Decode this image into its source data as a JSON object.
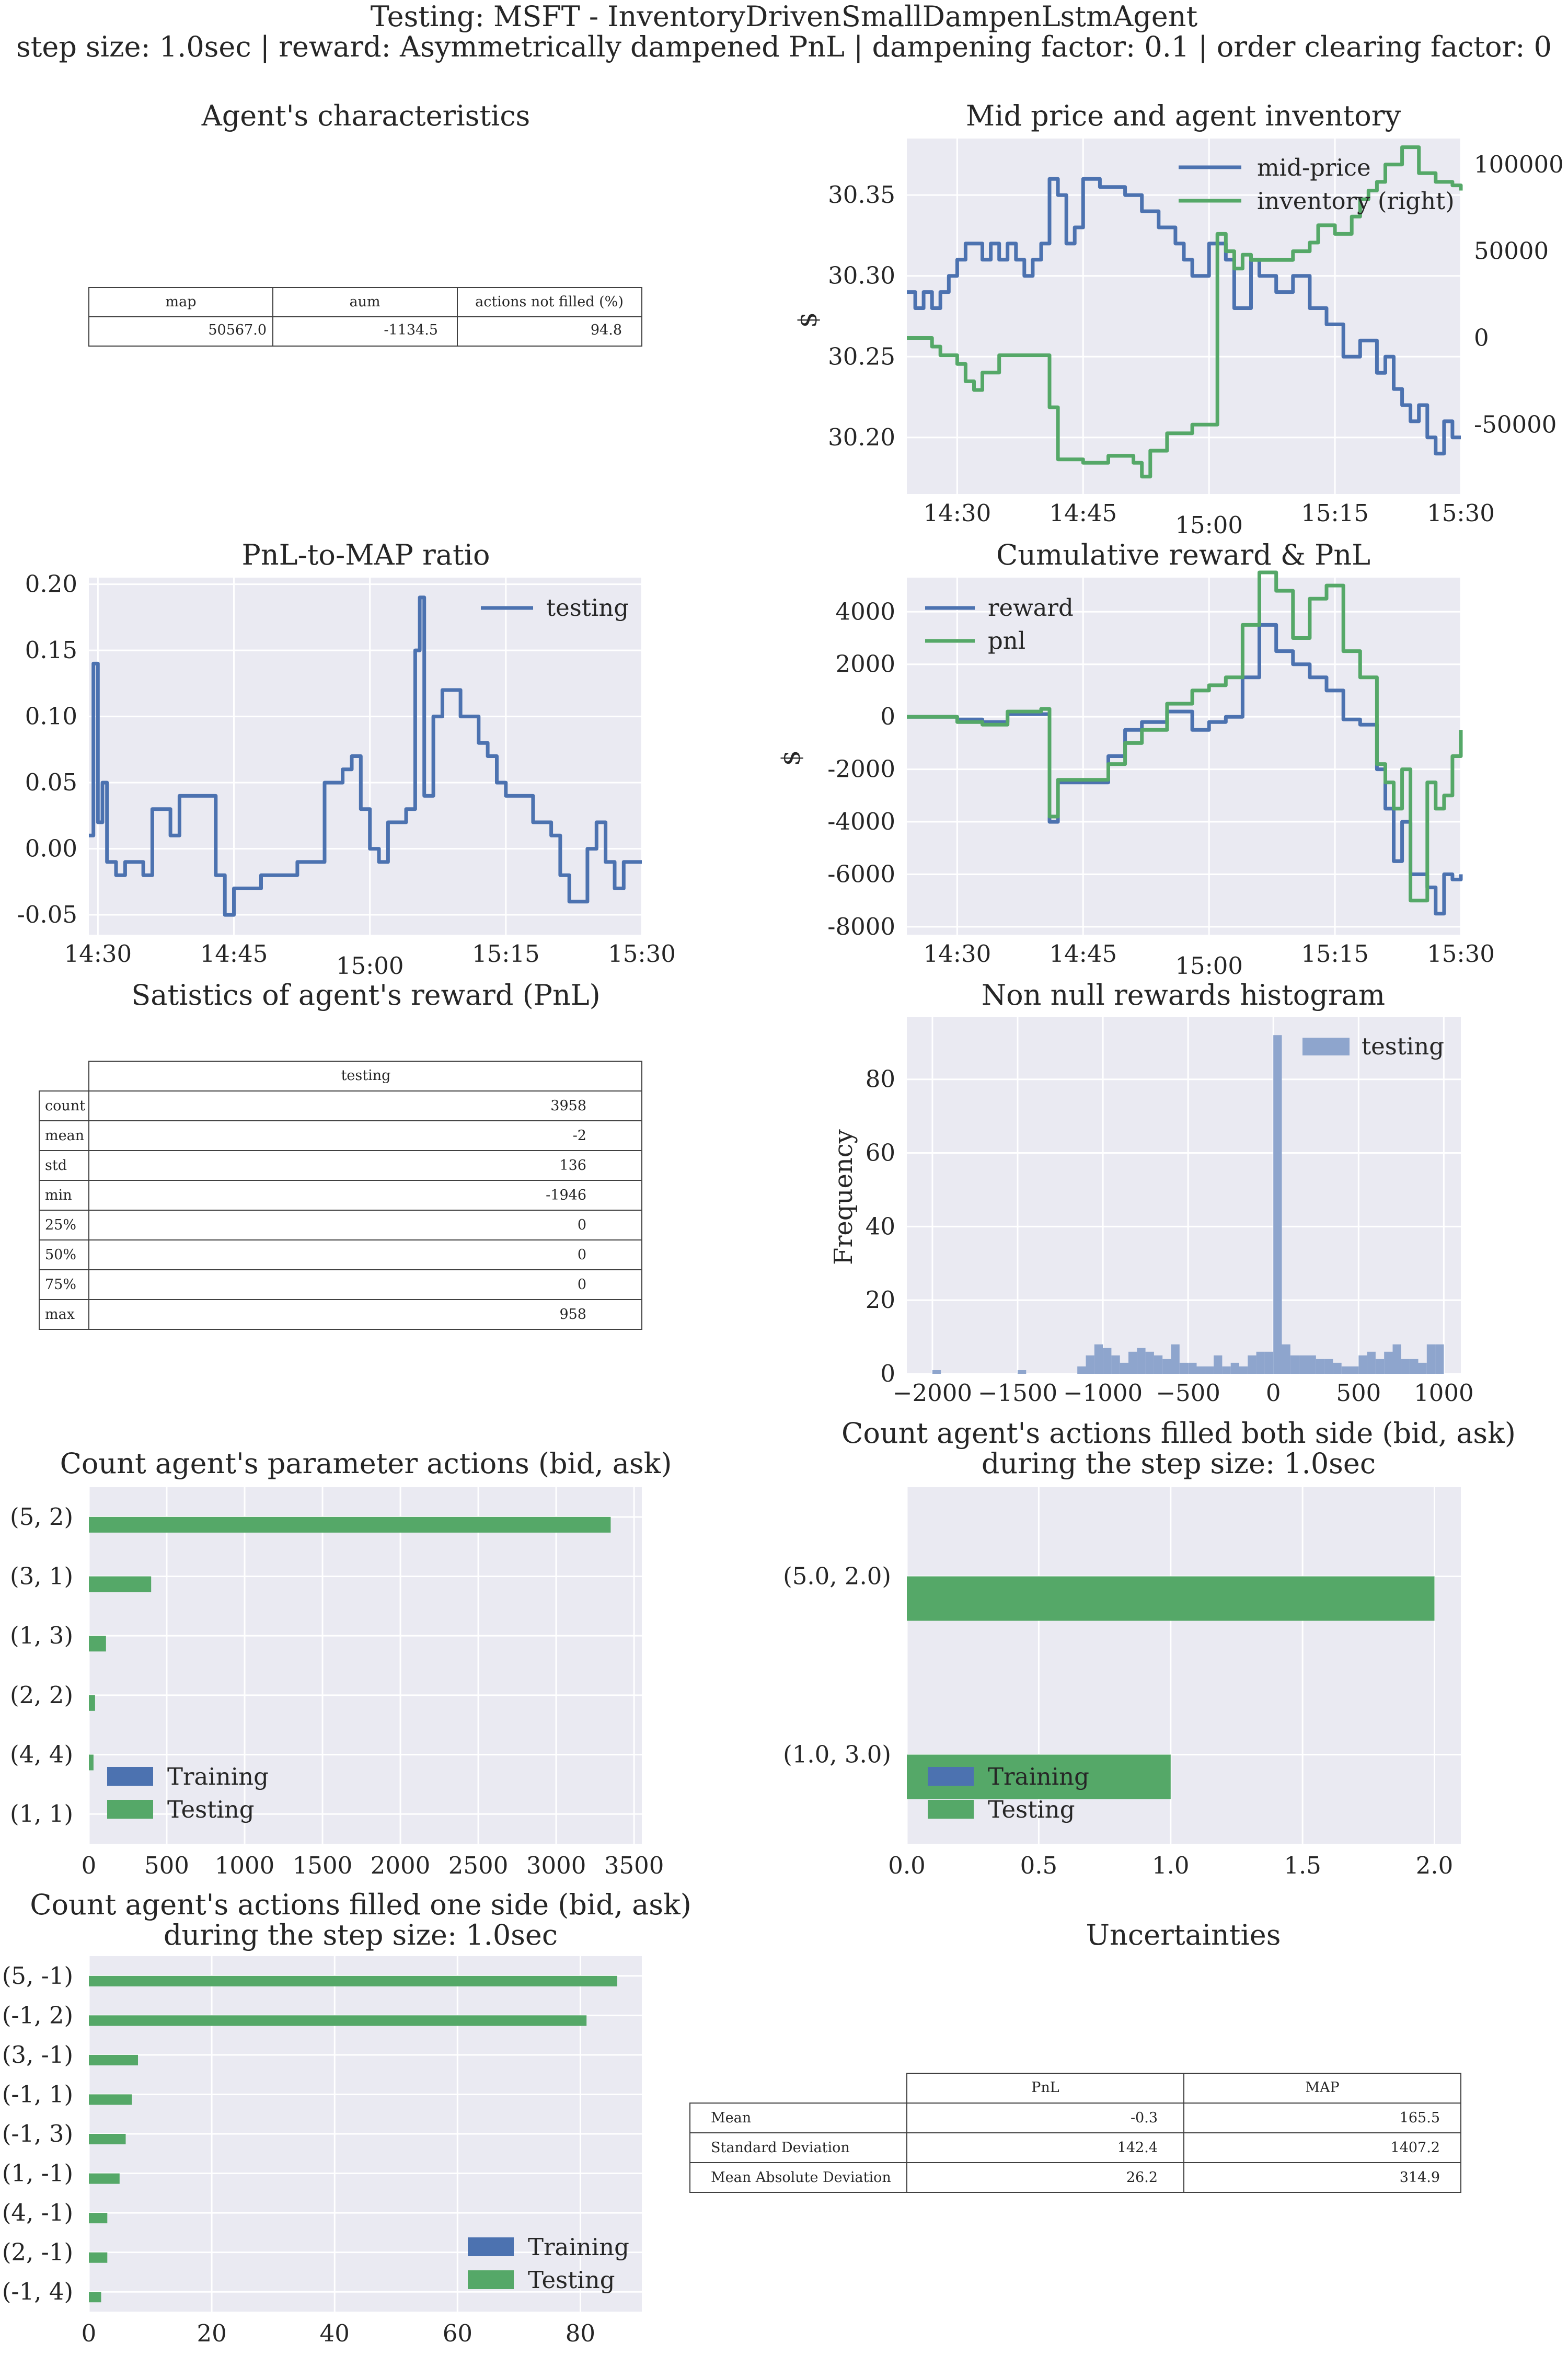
{
  "suptitle": {
    "line1": "Testing: MSFT - InventoryDrivenSmallDampenLstmAgent",
    "line2": "step size: 1.0sec | reward: Asymmetrically dampened PnL | dampening factor: 0.1  | order clearing factor: 0"
  },
  "colors": {
    "blue": "#4c72b0",
    "green": "#55a868",
    "plot_bg": "#eaeaf2",
    "hist": "#8ea5cd"
  },
  "characteristics": {
    "title": "Agent's characteristics",
    "headers": [
      "map",
      "aum",
      "actions not filled (%)"
    ],
    "values": [
      "50567.0",
      "-1134.5",
      "94.8"
    ]
  },
  "chart_data": [
    {
      "id": "mid_price_inventory",
      "type": "line",
      "title": "Mid price and agent inventory",
      "xlabel": "",
      "ylabel": "$",
      "x_ticks": [
        "14:30",
        "14:45",
        "15:00",
        "15:15",
        "15:30"
      ],
      "x_range": [
        "14:24",
        "15:30"
      ],
      "ylim": [
        30.165,
        30.385
      ],
      "y_ticks": [
        "30.20",
        "30.25",
        "30.30",
        "30.35"
      ],
      "y2lim": [
        -90000,
        115000
      ],
      "y2_ticks": [
        "-50000",
        "0",
        "50000",
        "100000"
      ],
      "legend": "upper right",
      "grid": true,
      "series": [
        {
          "name": "mid-price",
          "axis": "left",
          "x": [
            "14:24",
            "14:25",
            "14:26",
            "14:27",
            "14:28",
            "14:29",
            "14:30",
            "14:31",
            "14:32",
            "14:33",
            "14:34",
            "14:35",
            "14:36",
            "14:37",
            "14:38",
            "14:39",
            "14:40",
            "14:41",
            "14:42",
            "14:43",
            "14:44",
            "14:45",
            "14:47",
            "14:50",
            "14:52",
            "14:54",
            "14:56",
            "14:57",
            "14:58",
            "15:00",
            "15:02",
            "15:03",
            "15:05",
            "15:06",
            "15:08",
            "15:10",
            "15:12",
            "15:14",
            "15:16",
            "15:18",
            "15:20",
            "15:21",
            "15:22",
            "15:23",
            "15:24",
            "15:25",
            "15:26",
            "15:27",
            "15:28",
            "15:29",
            "15:30"
          ],
          "values": [
            30.29,
            30.28,
            30.29,
            30.28,
            30.29,
            30.3,
            30.31,
            30.32,
            30.32,
            30.31,
            30.32,
            30.31,
            30.32,
            30.31,
            30.3,
            30.31,
            30.32,
            30.36,
            30.35,
            30.32,
            30.33,
            30.36,
            30.355,
            30.35,
            30.34,
            30.33,
            30.32,
            30.31,
            30.3,
            30.32,
            30.31,
            30.28,
            30.31,
            30.3,
            30.29,
            30.3,
            30.28,
            30.27,
            30.25,
            30.26,
            30.24,
            30.25,
            30.23,
            30.22,
            30.21,
            30.22,
            30.2,
            30.19,
            30.21,
            30.2,
            30.2
          ]
        },
        {
          "name": "inventory (right)",
          "axis": "right",
          "x": [
            "14:24",
            "14:25",
            "14:27",
            "14:28",
            "14:30",
            "14:31",
            "14:32",
            "14:33",
            "14:35",
            "14:37",
            "14:40",
            "14:41",
            "14:42",
            "14:45",
            "14:48",
            "14:51",
            "14:52",
            "14:53",
            "14:55",
            "14:58",
            "15:01",
            "15:02",
            "15:03",
            "15:04",
            "15:05",
            "15:08",
            "15:10",
            "15:12",
            "15:13",
            "15:15",
            "15:17",
            "15:18",
            "15:19",
            "15:20",
            "15:21",
            "15:23",
            "15:25",
            "15:27",
            "15:29",
            "15:30"
          ],
          "values": [
            0,
            0,
            -5000,
            -10000,
            -15000,
            -25000,
            -30000,
            -20000,
            -10000,
            -10000,
            -10000,
            -40000,
            -70000,
            -72000,
            -68000,
            -72000,
            -80000,
            -65000,
            -55000,
            -50000,
            60000,
            50000,
            40000,
            48000,
            45000,
            45000,
            50000,
            55000,
            65000,
            60000,
            70000,
            80000,
            85000,
            90000,
            100000,
            110000,
            95000,
            90000,
            88000,
            85000
          ]
        }
      ]
    },
    {
      "id": "pnl_to_map",
      "type": "line",
      "title": "PnL-to-MAP ratio",
      "xlabel": "",
      "ylabel": "",
      "x_ticks": [
        "14:30",
        "14:45",
        "15:00",
        "15:15",
        "15:30"
      ],
      "x_range": [
        "14:29",
        "15:30"
      ],
      "ylim": [
        -0.065,
        0.205
      ],
      "y_ticks": [
        "-0.05",
        "0.00",
        "0.05",
        "0.10",
        "0.15",
        "0.20"
      ],
      "legend": "upper right",
      "grid": true,
      "series": [
        {
          "name": "testing",
          "x": [
            "14:29",
            "14:29.5",
            "14:30",
            "14:30.5",
            "14:31",
            "14:32",
            "14:33",
            "14:35",
            "14:36",
            "14:38",
            "14:39",
            "14:40",
            "14:42",
            "14:43",
            "14:44",
            "14:45",
            "14:46",
            "14:48",
            "14:49",
            "14:52",
            "14:55",
            "14:57",
            "14:58",
            "14:59",
            "15:00",
            "15:01",
            "15:02",
            "15:04",
            "15:05",
            "15:05.5",
            "15:06",
            "15:07",
            "15:08",
            "15:10",
            "15:12",
            "15:13",
            "15:14",
            "15:15",
            "15:18",
            "15:20",
            "15:21",
            "15:22",
            "15:24",
            "15:25",
            "15:26",
            "15:27",
            "15:28",
            "15:29",
            "15:30"
          ],
          "values": [
            0.01,
            0.14,
            0.02,
            0.05,
            -0.01,
            -0.02,
            -0.01,
            -0.02,
            0.03,
            0.01,
            0.04,
            0.04,
            0.04,
            -0.02,
            -0.05,
            -0.03,
            -0.03,
            -0.02,
            -0.02,
            -0.01,
            0.05,
            0.06,
            0.07,
            0.03,
            0.0,
            -0.01,
            0.02,
            0.03,
            0.15,
            0.19,
            0.04,
            0.1,
            0.12,
            0.1,
            0.08,
            0.07,
            0.05,
            0.04,
            0.02,
            0.01,
            -0.02,
            -0.04,
            0.0,
            0.02,
            -0.01,
            -0.03,
            -0.01,
            -0.01,
            -0.01
          ]
        }
      ]
    },
    {
      "id": "cumulative_reward_pnl",
      "type": "line",
      "title": "Cumulative reward & PnL",
      "xlabel": "",
      "ylabel": "$",
      "x_ticks": [
        "14:30",
        "14:45",
        "15:00",
        "15:15",
        "15:30"
      ],
      "x_range": [
        "14:24",
        "15:30"
      ],
      "ylim": [
        -8300,
        5300
      ],
      "y_ticks": [
        "-8000",
        "-6000",
        "-4000",
        "-2000",
        "0",
        "2000",
        "4000"
      ],
      "legend": "upper left",
      "grid": true,
      "series": [
        {
          "name": "reward",
          "x": [
            "14:24",
            "14:27",
            "14:30",
            "14:33",
            "14:36",
            "14:40",
            "14:41",
            "14:42",
            "14:45",
            "14:48",
            "14:50",
            "14:52",
            "14:55",
            "14:58",
            "15:00",
            "15:02",
            "15:04",
            "15:06",
            "15:08",
            "15:10",
            "15:12",
            "15:14",
            "15:16",
            "15:18",
            "15:20",
            "15:21",
            "15:22",
            "15:23",
            "15:24",
            "15:26",
            "15:27",
            "15:28",
            "15:29",
            "15:30"
          ],
          "values": [
            0,
            0,
            -100,
            -200,
            100,
            100,
            -4000,
            -2500,
            -2500,
            -1500,
            -500,
            -200,
            200,
            -500,
            -200,
            0,
            1500,
            3500,
            2500,
            2000,
            1500,
            1000,
            -100,
            -300,
            -2000,
            -3500,
            -5500,
            -4000,
            -6000,
            -6500,
            -7500,
            -6000,
            -6200,
            -6000
          ]
        },
        {
          "name": "pnl",
          "x": [
            "14:24",
            "14:27",
            "14:30",
            "14:33",
            "14:36",
            "14:40",
            "14:41",
            "14:42",
            "14:45",
            "14:48",
            "14:50",
            "14:52",
            "14:55",
            "14:58",
            "15:00",
            "15:02",
            "15:04",
            "15:06",
            "15:08",
            "15:10",
            "15:12",
            "15:14",
            "15:16",
            "15:18",
            "15:20",
            "15:21",
            "15:22",
            "15:23",
            "15:24",
            "15:26",
            "15:27",
            "15:28",
            "15:29",
            "15:30"
          ],
          "values": [
            0,
            0,
            -200,
            -300,
            200,
            300,
            -3800,
            -2400,
            -2400,
            -1800,
            -1000,
            -500,
            500,
            1000,
            1200,
            1500,
            3500,
            5500,
            4800,
            3000,
            4500,
            5000,
            2500,
            1500,
            -1800,
            -2500,
            -3500,
            -2000,
            -7000,
            -2500,
            -3500,
            -3000,
            -1500,
            -500
          ]
        }
      ]
    },
    {
      "id": "reward_histogram",
      "type": "bar",
      "title": "Non null rewards histogram",
      "xlabel": "",
      "ylabel": "Frequency",
      "xlim": [
        -2150,
        1100
      ],
      "x_ticks": [
        "−2000",
        "−1500",
        "−1000",
        "−500",
        "0",
        "500",
        "1000"
      ],
      "ylim": [
        0,
        97
      ],
      "y_ticks": [
        "0",
        "20",
        "40",
        "60",
        "80"
      ],
      "legend": "upper right",
      "grid": true,
      "bin_width": 50,
      "series": [
        {
          "name": "testing",
          "bin_start": [
            -2000,
            -1500,
            -1150,
            -1100,
            -1050,
            -1000,
            -950,
            -900,
            -850,
            -800,
            -750,
            -700,
            -650,
            -600,
            -550,
            -500,
            -450,
            -400,
            -350,
            -300,
            -250,
            -200,
            -150,
            -100,
            -50,
            0,
            50,
            100,
            150,
            200,
            250,
            300,
            350,
            400,
            450,
            500,
            550,
            600,
            650,
            700,
            750,
            800,
            850,
            900,
            950
          ],
          "values": [
            1,
            1,
            2,
            5,
            8,
            7,
            5,
            3,
            6,
            7,
            6,
            5,
            4,
            8,
            3,
            3,
            2,
            2,
            5,
            2,
            3,
            2,
            5,
            6,
            6,
            92,
            8,
            5,
            5,
            5,
            4,
            4,
            3,
            2,
            2,
            5,
            6,
            4,
            6,
            8,
            4,
            4,
            3,
            8,
            8
          ]
        }
      ]
    },
    {
      "id": "parameter_actions",
      "type": "bar",
      "orientation": "horizontal",
      "title": "Count agent's parameter actions (bid, ask)",
      "xlabel": "",
      "ylabel": "",
      "categories": [
        "(5, 2)",
        "(3, 1)",
        "(1, 3)",
        "(2, 2)",
        "(4, 4)",
        "(1, 1)"
      ],
      "xlim": [
        0,
        3550
      ],
      "x_ticks": [
        "0",
        "500",
        "1000",
        "1500",
        "2000",
        "2500",
        "3000",
        "3500"
      ],
      "legend": "lower left",
      "grid": true,
      "series": [
        {
          "name": "Training",
          "values": [
            0,
            0,
            0,
            0,
            0,
            0
          ]
        },
        {
          "name": "Testing",
          "values": [
            3350,
            400,
            110,
            40,
            30,
            0
          ]
        }
      ]
    },
    {
      "id": "filled_both_side",
      "type": "bar",
      "orientation": "horizontal",
      "title": "Count agent's actions filled both side (bid, ask)\nduring the step size: 1.0sec",
      "title_lines": [
        "Count agent's actions filled both side (bid, ask)",
        "during the step size: 1.0sec"
      ],
      "xlabel": "",
      "ylabel": "",
      "categories": [
        "(5.0, 2.0)",
        "(1.0, 3.0)"
      ],
      "xlim": [
        0,
        2.1
      ],
      "x_ticks": [
        "0.0",
        "0.5",
        "1.0",
        "1.5",
        "2.0"
      ],
      "legend": "lower left",
      "grid": true,
      "series": [
        {
          "name": "Training",
          "values": [
            0,
            0
          ]
        },
        {
          "name": "Testing",
          "values": [
            2,
            1
          ]
        }
      ]
    },
    {
      "id": "filled_one_side",
      "type": "bar",
      "orientation": "horizontal",
      "title": "Count agent's actions filled one side (bid, ask)\nduring the step size: 1.0sec",
      "title_lines": [
        "Count agent's actions filled one side (bid, ask)",
        "during the step size: 1.0sec"
      ],
      "xlabel": "",
      "ylabel": "",
      "categories": [
        "(5, -1)",
        "(-1, 2)",
        "(3, -1)",
        "(-1, 1)",
        "(-1, 3)",
        "(1, -1)",
        "(4, -1)",
        "(2, -1)",
        "(-1, 4)"
      ],
      "xlim": [
        0,
        90
      ],
      "x_ticks": [
        "0",
        "20",
        "40",
        "60",
        "80"
      ],
      "legend": "lower right",
      "grid": true,
      "series": [
        {
          "name": "Training",
          "values": [
            0,
            0,
            0,
            0,
            0,
            0,
            0,
            0,
            0
          ]
        },
        {
          "name": "Testing",
          "values": [
            86,
            81,
            8,
            7,
            6,
            5,
            3,
            3,
            2
          ]
        }
      ]
    }
  ],
  "reward_stats": {
    "title": "Satistics of agent's reward (PnL)",
    "header": "testing",
    "rows": [
      {
        "label": "count",
        "value": "3958"
      },
      {
        "label": "mean",
        "value": "-2"
      },
      {
        "label": "std",
        "value": "136"
      },
      {
        "label": "min",
        "value": "-1946"
      },
      {
        "label": "25%",
        "value": "0"
      },
      {
        "label": "50%",
        "value": "0"
      },
      {
        "label": "75%",
        "value": "0"
      },
      {
        "label": "max",
        "value": "958"
      }
    ]
  },
  "uncertainties": {
    "title": "Uncertainties",
    "headers": [
      "PnL",
      "MAP"
    ],
    "rows": [
      {
        "label": "Mean",
        "values": [
          "-0.3",
          "165.5"
        ]
      },
      {
        "label": "Standard Deviation",
        "values": [
          "142.4",
          "1407.2"
        ]
      },
      {
        "label": "Mean Absolute Deviation",
        "values": [
          "26.2",
          "314.9"
        ]
      }
    ]
  }
}
